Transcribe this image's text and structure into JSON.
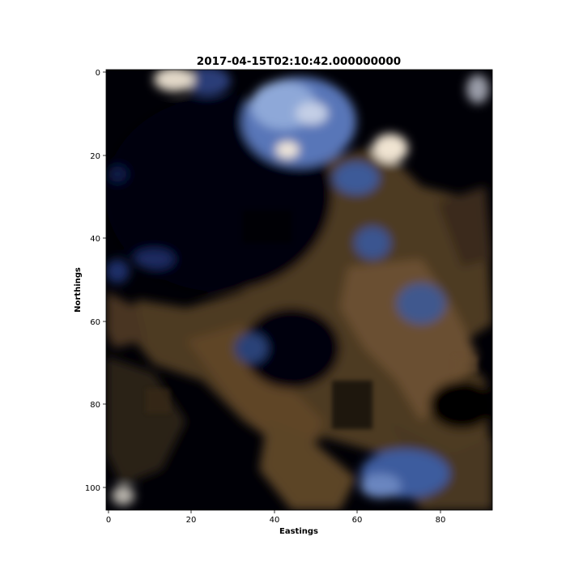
{
  "figure": {
    "title": "2017-04-15T02:10:42.000000000",
    "xlabel": "Eastings",
    "ylabel": "Northings",
    "x_ticks": [
      "0",
      "20",
      "40",
      "60",
      "80"
    ],
    "y_ticks": [
      "0",
      "20",
      "40",
      "60",
      "80",
      "100"
    ],
    "x_range": [
      0,
      93
    ],
    "y_range": [
      0,
      106
    ],
    "y_axis_inverted": true
  },
  "colors": {
    "background": "#000006",
    "land_brown": "#5a4326",
    "cloud_blue": "#4a68a8",
    "cloud_bright": "#e8e0d4"
  }
}
